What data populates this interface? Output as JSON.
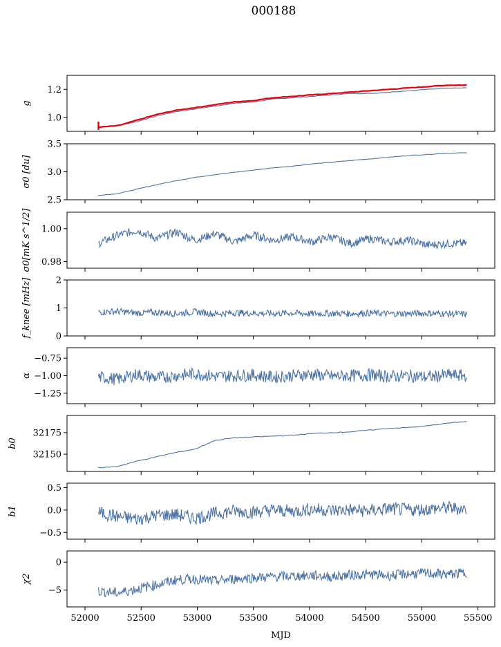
{
  "title": "000188",
  "colors": {
    "series": "#4c72a4",
    "model": "#e8000b",
    "axis": "#000000"
  },
  "chart_data": [
    {
      "type": "line",
      "ylabel": "g",
      "ylim": [
        0.9,
        1.3
      ],
      "yticks": [
        1.0,
        1.2
      ],
      "ytick_labels": [
        "1.0",
        "1.2"
      ],
      "series": [
        {
          "values": [
            0.93,
            0.94,
            0.97,
            1.01,
            1.04,
            1.06,
            1.08,
            1.1,
            1.11,
            1.13,
            1.14,
            1.15,
            1.16,
            1.17,
            1.17,
            1.18,
            1.19,
            1.2,
            1.21,
            1.21
          ]
        },
        {
          "values": [
            0.93,
            0.94,
            0.98,
            1.02,
            1.05,
            1.07,
            1.09,
            1.11,
            1.12,
            1.14,
            1.15,
            1.16,
            1.17,
            1.18,
            1.19,
            1.2,
            1.21,
            1.22,
            1.23,
            1.23
          ]
        }
      ]
    },
    {
      "type": "line",
      "ylabel": "σ0 [du]",
      "ylim": [
        2.5,
        3.5
      ],
      "yticks": [
        2.5,
        3.0,
        3.5
      ],
      "ytick_labels": [
        "2.5",
        "3.0",
        "3.5"
      ],
      "series": [
        {
          "values": [
            2.58,
            2.61,
            2.69,
            2.77,
            2.84,
            2.9,
            2.95,
            2.99,
            3.03,
            3.07,
            3.1,
            3.14,
            3.17,
            3.2,
            3.23,
            3.26,
            3.29,
            3.31,
            3.33,
            3.34
          ]
        }
      ]
    },
    {
      "type": "line",
      "ylabel": "σ0[mK s^1/2]",
      "ylim": [
        0.976,
        1.01
      ],
      "yticks": [
        0.98,
        1.0
      ],
      "ytick_labels": [
        "0.98",
        "1.00"
      ],
      "series": [
        {
          "values": [
            0.991,
            0.996,
            0.999,
            0.994,
            0.998,
            0.993,
            0.997,
            0.992,
            0.996,
            0.993,
            0.995,
            0.992,
            0.995,
            0.991,
            0.994,
            0.992,
            0.993,
            0.99,
            0.991,
            0.991
          ]
        }
      ]
    },
    {
      "type": "line",
      "ylabel": "f_knee [mHz]",
      "ylim": [
        0,
        2
      ],
      "yticks": [
        0,
        1,
        2
      ],
      "ytick_labels": [
        "0",
        "1",
        "2"
      ],
      "series": [
        {
          "values": [
            0.85,
            0.88,
            0.82,
            0.84,
            0.8,
            0.86,
            0.79,
            0.83,
            0.81,
            0.8,
            0.82,
            0.79,
            0.81,
            0.8,
            0.82,
            0.79,
            0.8,
            0.81,
            0.79,
            0.78
          ]
        }
      ]
    },
    {
      "type": "line",
      "ylabel": "α",
      "ylim": [
        -1.4,
        -0.6
      ],
      "yticks": [
        -1.25,
        -1.0,
        -0.75
      ],
      "ytick_labels": [
        "−1.25",
        "−1.00",
        "−0.75"
      ],
      "series": [
        {
          "values": [
            -1.02,
            -1.05,
            -0.98,
            -1.03,
            -1.0,
            -0.97,
            -1.01,
            -1.0,
            -0.99,
            -1.02,
            -1.0,
            -0.98,
            -1.01,
            -1.0,
            -0.99,
            -1.01,
            -1.0,
            -1.02,
            -0.99,
            -1.0
          ]
        }
      ]
    },
    {
      "type": "line",
      "ylabel": "b0",
      "ylim": [
        32130,
        32195
      ],
      "yticks": [
        32150,
        32175
      ],
      "ytick_labels": [
        "32150",
        "32175"
      ],
      "series": [
        {
          "values": [
            32134,
            32136,
            32142,
            32147,
            32152,
            32156,
            32166,
            32169,
            32170,
            32171,
            32172,
            32174,
            32175,
            32176,
            32178,
            32180,
            32181,
            32183,
            32186,
            32188
          ]
        }
      ]
    },
    {
      "type": "line",
      "ylabel": "b1",
      "ylim": [
        -0.65,
        0.6
      ],
      "yticks": [
        -0.5,
        0.0,
        0.5
      ],
      "ytick_labels": [
        "−0.5",
        "0.0",
        "0.5"
      ],
      "series": [
        {
          "values": [
            -0.05,
            -0.15,
            -0.2,
            -0.12,
            -0.1,
            -0.18,
            -0.08,
            -0.02,
            -0.05,
            0.0,
            -0.03,
            0.02,
            -0.01,
            0.0,
            -0.02,
            0.03,
            0.0,
            0.02,
            0.05,
            0.02
          ]
        }
      ]
    },
    {
      "type": "line",
      "ylabel": "χ2",
      "ylim": [
        -8,
        2
      ],
      "yticks": [
        -5,
        0
      ],
      "ytick_labels": [
        "−5",
        "0"
      ],
      "xlabel": "MJD",
      "xlim": [
        51840,
        55650
      ],
      "xticks": [
        52000,
        52500,
        53000,
        53500,
        54000,
        54500,
        55000,
        55500
      ],
      "xtick_labels": [
        "52000",
        "52500",
        "53000",
        "53500",
        "54000",
        "54500",
        "55000",
        "55500"
      ],
      "series": [
        {
          "values": [
            -5.2,
            -5.5,
            -4.8,
            -4.0,
            -3.2,
            -3.0,
            -3.4,
            -3.0,
            -2.8,
            -2.6,
            -2.5,
            -2.4,
            -2.6,
            -2.3,
            -2.2,
            -2.4,
            -2.1,
            -2.0,
            -2.2,
            -1.9
          ]
        }
      ]
    }
  ],
  "x_range": [
    52120,
    55400
  ]
}
